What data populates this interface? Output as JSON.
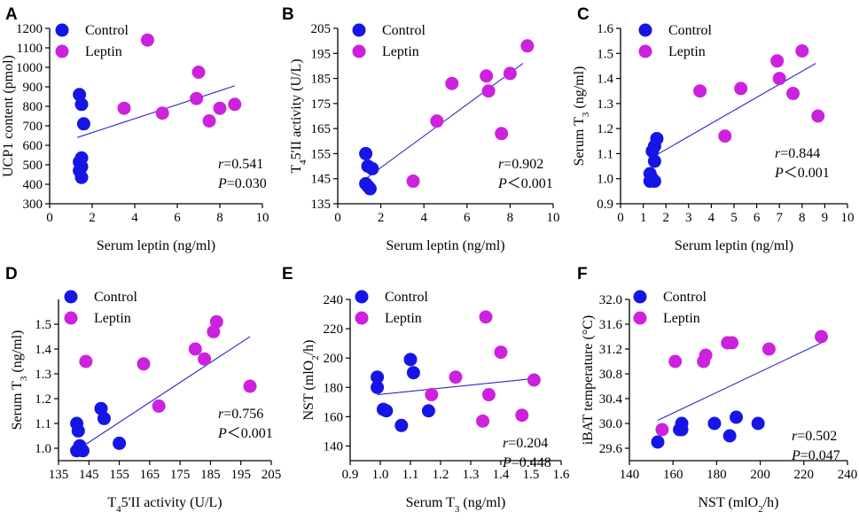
{
  "colors": {
    "control": "#1515e6",
    "leptin": "#cc22dd",
    "fit": "#2a2ad0",
    "axis": "#000000"
  },
  "chart_data": [
    {
      "type": "scatter",
      "panel_label": "A",
      "title": "",
      "xlabel": "Serum leptin (ng/ml)",
      "ylabel": "UCP1 content (pmol)",
      "xlim": [
        0,
        10
      ],
      "ylim": [
        300,
        1200
      ],
      "xticks": [
        "0",
        "2",
        "4",
        "6",
        "8",
        "10"
      ],
      "yticks": [
        "300",
        "400",
        "500",
        "600",
        "700",
        "800",
        "900",
        "1000",
        "1100",
        "1200"
      ],
      "legend": [
        "Control",
        "Leptin"
      ],
      "series": [
        {
          "name": "Control",
          "points": [
            [
              1.4,
              860
            ],
            [
              1.5,
              810
            ],
            [
              1.6,
              710
            ],
            [
              1.5,
              535
            ],
            [
              1.4,
              515
            ],
            [
              1.5,
              490
            ],
            [
              1.4,
              470
            ],
            [
              1.5,
              435
            ]
          ]
        },
        {
          "name": "Leptin",
          "points": [
            [
              4.6,
              1140
            ],
            [
              3.5,
              790
            ],
            [
              5.3,
              765
            ],
            [
              7.0,
              975
            ],
            [
              6.9,
              840
            ],
            [
              7.5,
              725
            ],
            [
              8.0,
              790
            ],
            [
              8.7,
              810
            ]
          ]
        }
      ],
      "fit": [
        [
          1.3,
          640
        ],
        [
          8.7,
          905
        ]
      ],
      "stats": {
        "r_prefix": "r",
        "r_value": "=0.541",
        "p_prefix": "P",
        "p_value": "=0.030"
      }
    },
    {
      "type": "scatter",
      "panel_label": "B",
      "title": "",
      "xlabel": "Serum leptin (ng/ml)",
      "ylabel_pre": "T",
      "ylabel_sub": "4",
      "ylabel_post": "5'II activity (U/L)",
      "xlim": [
        0,
        10
      ],
      "ylim": [
        135,
        205
      ],
      "xticks": [
        "0",
        "2",
        "4",
        "6",
        "8",
        "10"
      ],
      "yticks": [
        "135",
        "145",
        "155",
        "165",
        "175",
        "185",
        "195",
        "205"
      ],
      "legend": [
        "Control",
        "Leptin"
      ],
      "series": [
        {
          "name": "Control",
          "points": [
            [
              1.3,
              155
            ],
            [
              1.4,
              150
            ],
            [
              1.6,
              149
            ],
            [
              1.3,
              143
            ],
            [
              1.4,
              142
            ],
            [
              1.5,
              141
            ]
          ]
        },
        {
          "name": "Leptin",
          "points": [
            [
              3.5,
              144
            ],
            [
              4.6,
              168
            ],
            [
              5.3,
              183
            ],
            [
              6.9,
              186
            ],
            [
              7.0,
              180
            ],
            [
              7.6,
              163
            ],
            [
              8.0,
              187
            ],
            [
              8.8,
              198
            ]
          ]
        }
      ],
      "fit": [
        [
          1.3,
          145
        ],
        [
          8.6,
          191
        ]
      ],
      "stats": {
        "r_prefix": "r",
        "r_value": "=0.902",
        "p_prefix": "P",
        "p_value": "＜0.001"
      }
    },
    {
      "type": "scatter",
      "panel_label": "C",
      "title": "",
      "xlabel": "Serum leptin (ng/ml)",
      "ylabel_pre": "Serum T",
      "ylabel_sub": "3",
      "ylabel_post": " (ng/ml)",
      "xlim": [
        0,
        10
      ],
      "ylim": [
        0.9,
        1.6
      ],
      "xticks": [
        "0",
        "1",
        "2",
        "3",
        "4",
        "5",
        "6",
        "7",
        "8",
        "9",
        "10"
      ],
      "yticks": [
        "0.9",
        "1.0",
        "1.1",
        "1.2",
        "1.3",
        "1.4",
        "1.5",
        "1.6"
      ],
      "legend": [
        "Control",
        "Leptin"
      ],
      "series": [
        {
          "name": "Control",
          "points": [
            [
              1.6,
              1.16
            ],
            [
              1.5,
              1.13
            ],
            [
              1.4,
              1.11
            ],
            [
              1.5,
              1.07
            ],
            [
              1.3,
              1.02
            ],
            [
              1.4,
              1.0
            ],
            [
              1.5,
              0.99
            ],
            [
              1.3,
              0.99
            ]
          ]
        },
        {
          "name": "Leptin",
          "points": [
            [
              3.5,
              1.35
            ],
            [
              4.6,
              1.17
            ],
            [
              5.3,
              1.36
            ],
            [
              6.9,
              1.47
            ],
            [
              7.0,
              1.4
            ],
            [
              7.6,
              1.34
            ],
            [
              8.0,
              1.51
            ],
            [
              8.7,
              1.25
            ]
          ]
        }
      ],
      "fit": [
        [
          1.3,
          1.08
        ],
        [
          8.6,
          1.46
        ]
      ],
      "stats": {
        "r_prefix": "r",
        "r_value": "=0.844",
        "p_prefix": "P",
        "p_value": "＜0.001"
      }
    },
    {
      "type": "scatter",
      "panel_label": "D",
      "title": "",
      "xlabel_pre": "T",
      "xlabel_sub": "4",
      "xlabel_post": "5'II activity (U/L)",
      "ylabel_pre": "Serum T",
      "ylabel_sub": "3",
      "ylabel_post": " (ng/ml)",
      "xlim": [
        135,
        205
      ],
      "ylim": [
        0.95,
        1.6
      ],
      "xticks": [
        "135",
        "145",
        "155",
        "165",
        "175",
        "185",
        "195",
        "205"
      ],
      "yticks": [
        "1.0",
        "1.1",
        "1.2",
        "1.3",
        "1.4",
        "1.5"
      ],
      "legend": [
        "Control",
        "Leptin"
      ],
      "series": [
        {
          "name": "Control",
          "points": [
            [
              141,
              1.1
            ],
            [
              141.5,
              1.07
            ],
            [
              149,
              1.16
            ],
            [
              150,
              1.12
            ],
            [
              142,
              1.01
            ],
            [
              141,
              0.99
            ],
            [
              143,
              0.99
            ],
            [
              155,
              1.02
            ]
          ]
        },
        {
          "name": "Leptin",
          "points": [
            [
              144,
              1.35
            ],
            [
              163,
              1.34
            ],
            [
              168,
              1.17
            ],
            [
              180,
              1.4
            ],
            [
              183,
              1.36
            ],
            [
              186,
              1.47
            ],
            [
              187,
              1.51
            ],
            [
              198,
              1.25
            ]
          ]
        }
      ],
      "fit": [
        [
          142,
          1.0
        ],
        [
          198,
          1.45
        ]
      ],
      "stats": {
        "r_prefix": "r",
        "r_value": "=0.756",
        "p_prefix": "P",
        "p_value": "＜0.001"
      }
    },
    {
      "type": "scatter",
      "panel_label": "E",
      "title": "",
      "xlabel_pre": "Serum T",
      "xlabel_sub": "3",
      "xlabel_post": " (ng/ml)",
      "ylabel_pre": "NST (mlO",
      "ylabel_sub": "2",
      "ylabel_post": "/h)",
      "xlim": [
        0.9,
        1.6
      ],
      "ylim": [
        130,
        240
      ],
      "xticks": [
        "0.9",
        "1.0",
        "1.1",
        "1.2",
        "1.3",
        "1.4",
        "1.5",
        "1.6"
      ],
      "yticks": [
        "140",
        "160",
        "180",
        "200",
        "220",
        "240"
      ],
      "legend": [
        "Control",
        "Leptin"
      ],
      "series": [
        {
          "name": "Control",
          "points": [
            [
              0.99,
              187
            ],
            [
              0.99,
              180
            ],
            [
              1.01,
              165
            ],
            [
              1.02,
              164
            ],
            [
              1.07,
              154
            ],
            [
              1.1,
              199
            ],
            [
              1.11,
              190
            ],
            [
              1.16,
              164
            ]
          ]
        },
        {
          "name": "Leptin",
          "points": [
            [
              1.17,
              175
            ],
            [
              1.25,
              187
            ],
            [
              1.34,
              157
            ],
            [
              1.35,
              228
            ],
            [
              1.36,
              175
            ],
            [
              1.4,
              204
            ],
            [
              1.47,
              161
            ],
            [
              1.51,
              185
            ]
          ]
        }
      ],
      "fit": [
        [
          0.99,
          175
        ],
        [
          1.51,
          186
        ]
      ],
      "stats": {
        "r_prefix": "r",
        "r_value": "=0.204",
        "p_prefix": "P",
        "p_value": "=0.448"
      }
    },
    {
      "type": "scatter",
      "panel_label": "F",
      "title": "",
      "xlabel_pre": "NST (mlO",
      "xlabel_sub": "2",
      "xlabel_post": "/h)",
      "ylabel": "iBAT temperature (°C)",
      "xlim": [
        140,
        240
      ],
      "ylim": [
        29.4,
        32.0
      ],
      "xticks": [
        "140",
        "160",
        "180",
        "200",
        "220",
        "240"
      ],
      "yticks": [
        "29.6",
        "30.0",
        "30.4",
        "30.8",
        "31.2",
        "31.6",
        "32.0"
      ],
      "legend": [
        "Control",
        "Leptin"
      ],
      "series": [
        {
          "name": "Control",
          "points": [
            [
              153,
              29.7
            ],
            [
              163,
              29.9
            ],
            [
              164,
              30.0
            ],
            [
              179,
              30.0
            ],
            [
              186,
              29.8
            ],
            [
              189,
              30.1
            ],
            [
              199,
              30.0
            ],
            [
              164,
              29.9
            ]
          ]
        },
        {
          "name": "Leptin",
          "points": [
            [
              155,
              29.9
            ],
            [
              161,
              31.0
            ],
            [
              174,
              31.0
            ],
            [
              175,
              31.1
            ],
            [
              185,
              31.3
            ],
            [
              187,
              31.3
            ],
            [
              204,
              31.2
            ],
            [
              228,
              31.4
            ]
          ]
        }
      ],
      "fit": [
        [
          153,
          30.05
        ],
        [
          228,
          31.3
        ]
      ],
      "stats": {
        "r_prefix": "r",
        "r_value": "=0.502",
        "p_prefix": "P",
        "p_value": "=0.047"
      }
    }
  ]
}
